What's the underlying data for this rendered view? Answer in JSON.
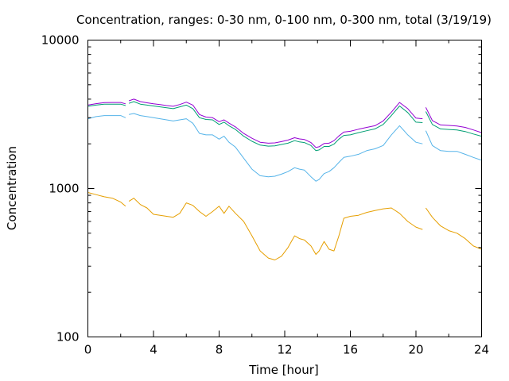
{
  "chart_data": {
    "type": "line",
    "title": "Concentration, ranges: 0-30 nm, 0-100 nm, 0-300 nm, total (3/19/19)",
    "xlabel": "Time [hour]",
    "ylabel": "Concentration",
    "xlim": [
      0,
      24
    ],
    "ylim": [
      100,
      10000
    ],
    "y_scale": "log",
    "grid": false,
    "legend": "none",
    "x_ticks": [
      0,
      4,
      8,
      12,
      16,
      20,
      24
    ],
    "x_tick_labels": [
      "0",
      "4",
      "8",
      "12",
      "16",
      "20",
      "24"
    ],
    "y_ticks": [
      100,
      1000,
      10000
    ],
    "y_tick_labels": [
      "100",
      "1000",
      "10000"
    ],
    "series": [
      {
        "color": "#e69f00",
        "segments": [
          {
            "x": [
              0,
              0.5,
              1,
              1.5,
              2,
              2.3
            ],
            "y": [
              940,
              910,
              880,
              860,
              810,
              760
            ]
          },
          {
            "x": [
              2.5,
              2.8,
              3.2,
              3.6,
              4,
              4.4,
              4.8,
              5.2,
              5.6,
              6,
              6.4,
              6.8,
              7.2,
              7.6,
              8,
              8.3,
              8.6,
              9,
              9.5,
              10,
              10.5,
              11,
              11.4,
              11.8,
              12.2,
              12.6,
              12.9,
              13.2,
              13.6,
              13.9,
              14.1,
              14.4,
              14.7,
              15,
              15.3,
              15.6,
              16,
              16.5,
              17,
              17.5,
              18,
              18.5,
              19,
              19.5,
              20,
              20.4
            ],
            "y": [
              820,
              860,
              780,
              740,
              670,
              660,
              650,
              640,
              680,
              800,
              770,
              700,
              650,
              700,
              760,
              680,
              760,
              680,
              600,
              480,
              380,
              340,
              330,
              350,
              400,
              480,
              460,
              450,
              410,
              360,
              380,
              440,
              390,
              380,
              480,
              630,
              650,
              660,
              690,
              710,
              730,
              740,
              680,
              600,
              550,
              530
            ]
          },
          {
            "x": [
              20.6,
              21,
              21.5,
              22,
              22.5,
              23,
              23.5,
              24
            ],
            "y": [
              740,
              640,
              560,
              520,
              500,
              460,
              410,
              390
            ]
          }
        ]
      },
      {
        "color": "#56b4e9",
        "segments": [
          {
            "x": [
              0,
              0.5,
              1,
              1.5,
              2,
              2.3
            ],
            "y": [
              2950,
              3050,
              3100,
              3100,
              3100,
              3000
            ]
          },
          {
            "x": [
              2.5,
              2.8,
              3.2,
              3.6,
              4,
              4.4,
              4.8,
              5.2,
              5.6,
              6,
              6.4,
              6.8,
              7.2,
              7.6,
              8,
              8.3,
              8.6,
              9,
              9.5,
              10,
              10.5,
              11,
              11.4,
              11.8,
              12.2,
              12.6,
              12.9,
              13.2,
              13.6,
              13.9,
              14.1,
              14.4,
              14.7,
              15,
              15.3,
              15.6,
              16,
              16.5,
              17,
              17.5,
              18,
              18.5,
              19,
              19.5,
              20,
              20.4
            ],
            "y": [
              3150,
              3200,
              3100,
              3050,
              3000,
              2950,
              2900,
              2850,
              2900,
              2950,
              2750,
              2350,
              2300,
              2300,
              2150,
              2250,
              2050,
              1900,
              1600,
              1350,
              1220,
              1200,
              1210,
              1250,
              1300,
              1380,
              1350,
              1330,
              1200,
              1120,
              1150,
              1260,
              1300,
              1380,
              1500,
              1620,
              1650,
              1700,
              1800,
              1850,
              1950,
              2300,
              2650,
              2300,
              2050,
              2000
            ]
          },
          {
            "x": [
              20.6,
              21,
              21.5,
              22,
              22.5,
              23,
              23.5,
              24
            ],
            "y": [
              2450,
              1950,
              1800,
              1780,
              1780,
              1700,
              1620,
              1550
            ]
          }
        ]
      },
      {
        "color": "#009e73",
        "segments": [
          {
            "x": [
              0,
              0.5,
              1,
              1.5,
              2,
              2.3
            ],
            "y": [
              3580,
              3650,
              3700,
              3700,
              3700,
              3620
            ]
          },
          {
            "x": [
              2.5,
              2.8,
              3.2,
              3.6,
              4,
              4.4,
              4.8,
              5.2,
              5.6,
              6,
              6.4,
              6.8,
              7.2,
              7.6,
              8,
              8.3,
              8.6,
              9,
              9.5,
              10,
              10.5,
              11,
              11.4,
              11.8,
              12.2,
              12.6,
              12.9,
              13.2,
              13.6,
              13.9,
              14.1,
              14.4,
              14.7,
              15,
              15.3,
              15.6,
              16,
              16.5,
              17,
              17.5,
              18,
              18.5,
              19,
              19.5,
              20,
              20.4
            ],
            "y": [
              3750,
              3850,
              3700,
              3650,
              3600,
              3550,
              3500,
              3450,
              3550,
              3650,
              3450,
              3000,
              2920,
              2900,
              2700,
              2800,
              2650,
              2500,
              2250,
              2080,
              1960,
              1930,
              1940,
              1980,
              2020,
              2100,
              2060,
              2040,
              1950,
              1800,
              1820,
              1920,
              1920,
              1990,
              2150,
              2280,
              2300,
              2380,
              2450,
              2520,
              2700,
              3100,
              3600,
              3250,
              2800,
              2780
            ]
          },
          {
            "x": [
              20.6,
              21,
              21.5,
              22,
              22.5,
              23,
              23.5,
              24
            ],
            "y": [
              3300,
              2700,
              2520,
              2500,
              2480,
              2420,
              2330,
              2250
            ]
          }
        ]
      },
      {
        "color": "#9400d3",
        "segments": [
          {
            "x": [
              0,
              0.5,
              1,
              1.5,
              2,
              2.3
            ],
            "y": [
              3650,
              3730,
              3790,
              3800,
              3800,
              3720
            ]
          },
          {
            "x": [
              2.5,
              2.8,
              3.2,
              3.6,
              4,
              4.4,
              4.8,
              5.2,
              5.6,
              6,
              6.4,
              6.8,
              7.2,
              7.6,
              8,
              8.3,
              8.6,
              9,
              9.5,
              10,
              10.5,
              11,
              11.4,
              11.8,
              12.2,
              12.6,
              12.9,
              13.2,
              13.6,
              13.9,
              14.1,
              14.4,
              14.7,
              15,
              15.3,
              15.6,
              16,
              16.5,
              17,
              17.5,
              18,
              18.5,
              19,
              19.5,
              20,
              20.4
            ],
            "y": [
              3900,
              4000,
              3850,
              3780,
              3720,
              3680,
              3620,
              3580,
              3680,
              3820,
              3650,
              3150,
              3030,
              3000,
              2820,
              2900,
              2760,
              2600,
              2350,
              2180,
              2050,
              2020,
              2030,
              2070,
              2120,
              2200,
              2160,
              2140,
              2040,
              1890,
              1910,
              2010,
              2020,
              2100,
              2260,
              2400,
              2430,
              2510,
              2580,
              2650,
              2850,
              3270,
              3800,
              3450,
              2980,
              2950
            ]
          },
          {
            "x": [
              20.6,
              21,
              21.5,
              22,
              22.5,
              23,
              23.5,
              24
            ],
            "y": [
              3520,
              2870,
              2680,
              2660,
              2640,
              2580,
              2480,
              2380
            ]
          }
        ]
      }
    ]
  }
}
